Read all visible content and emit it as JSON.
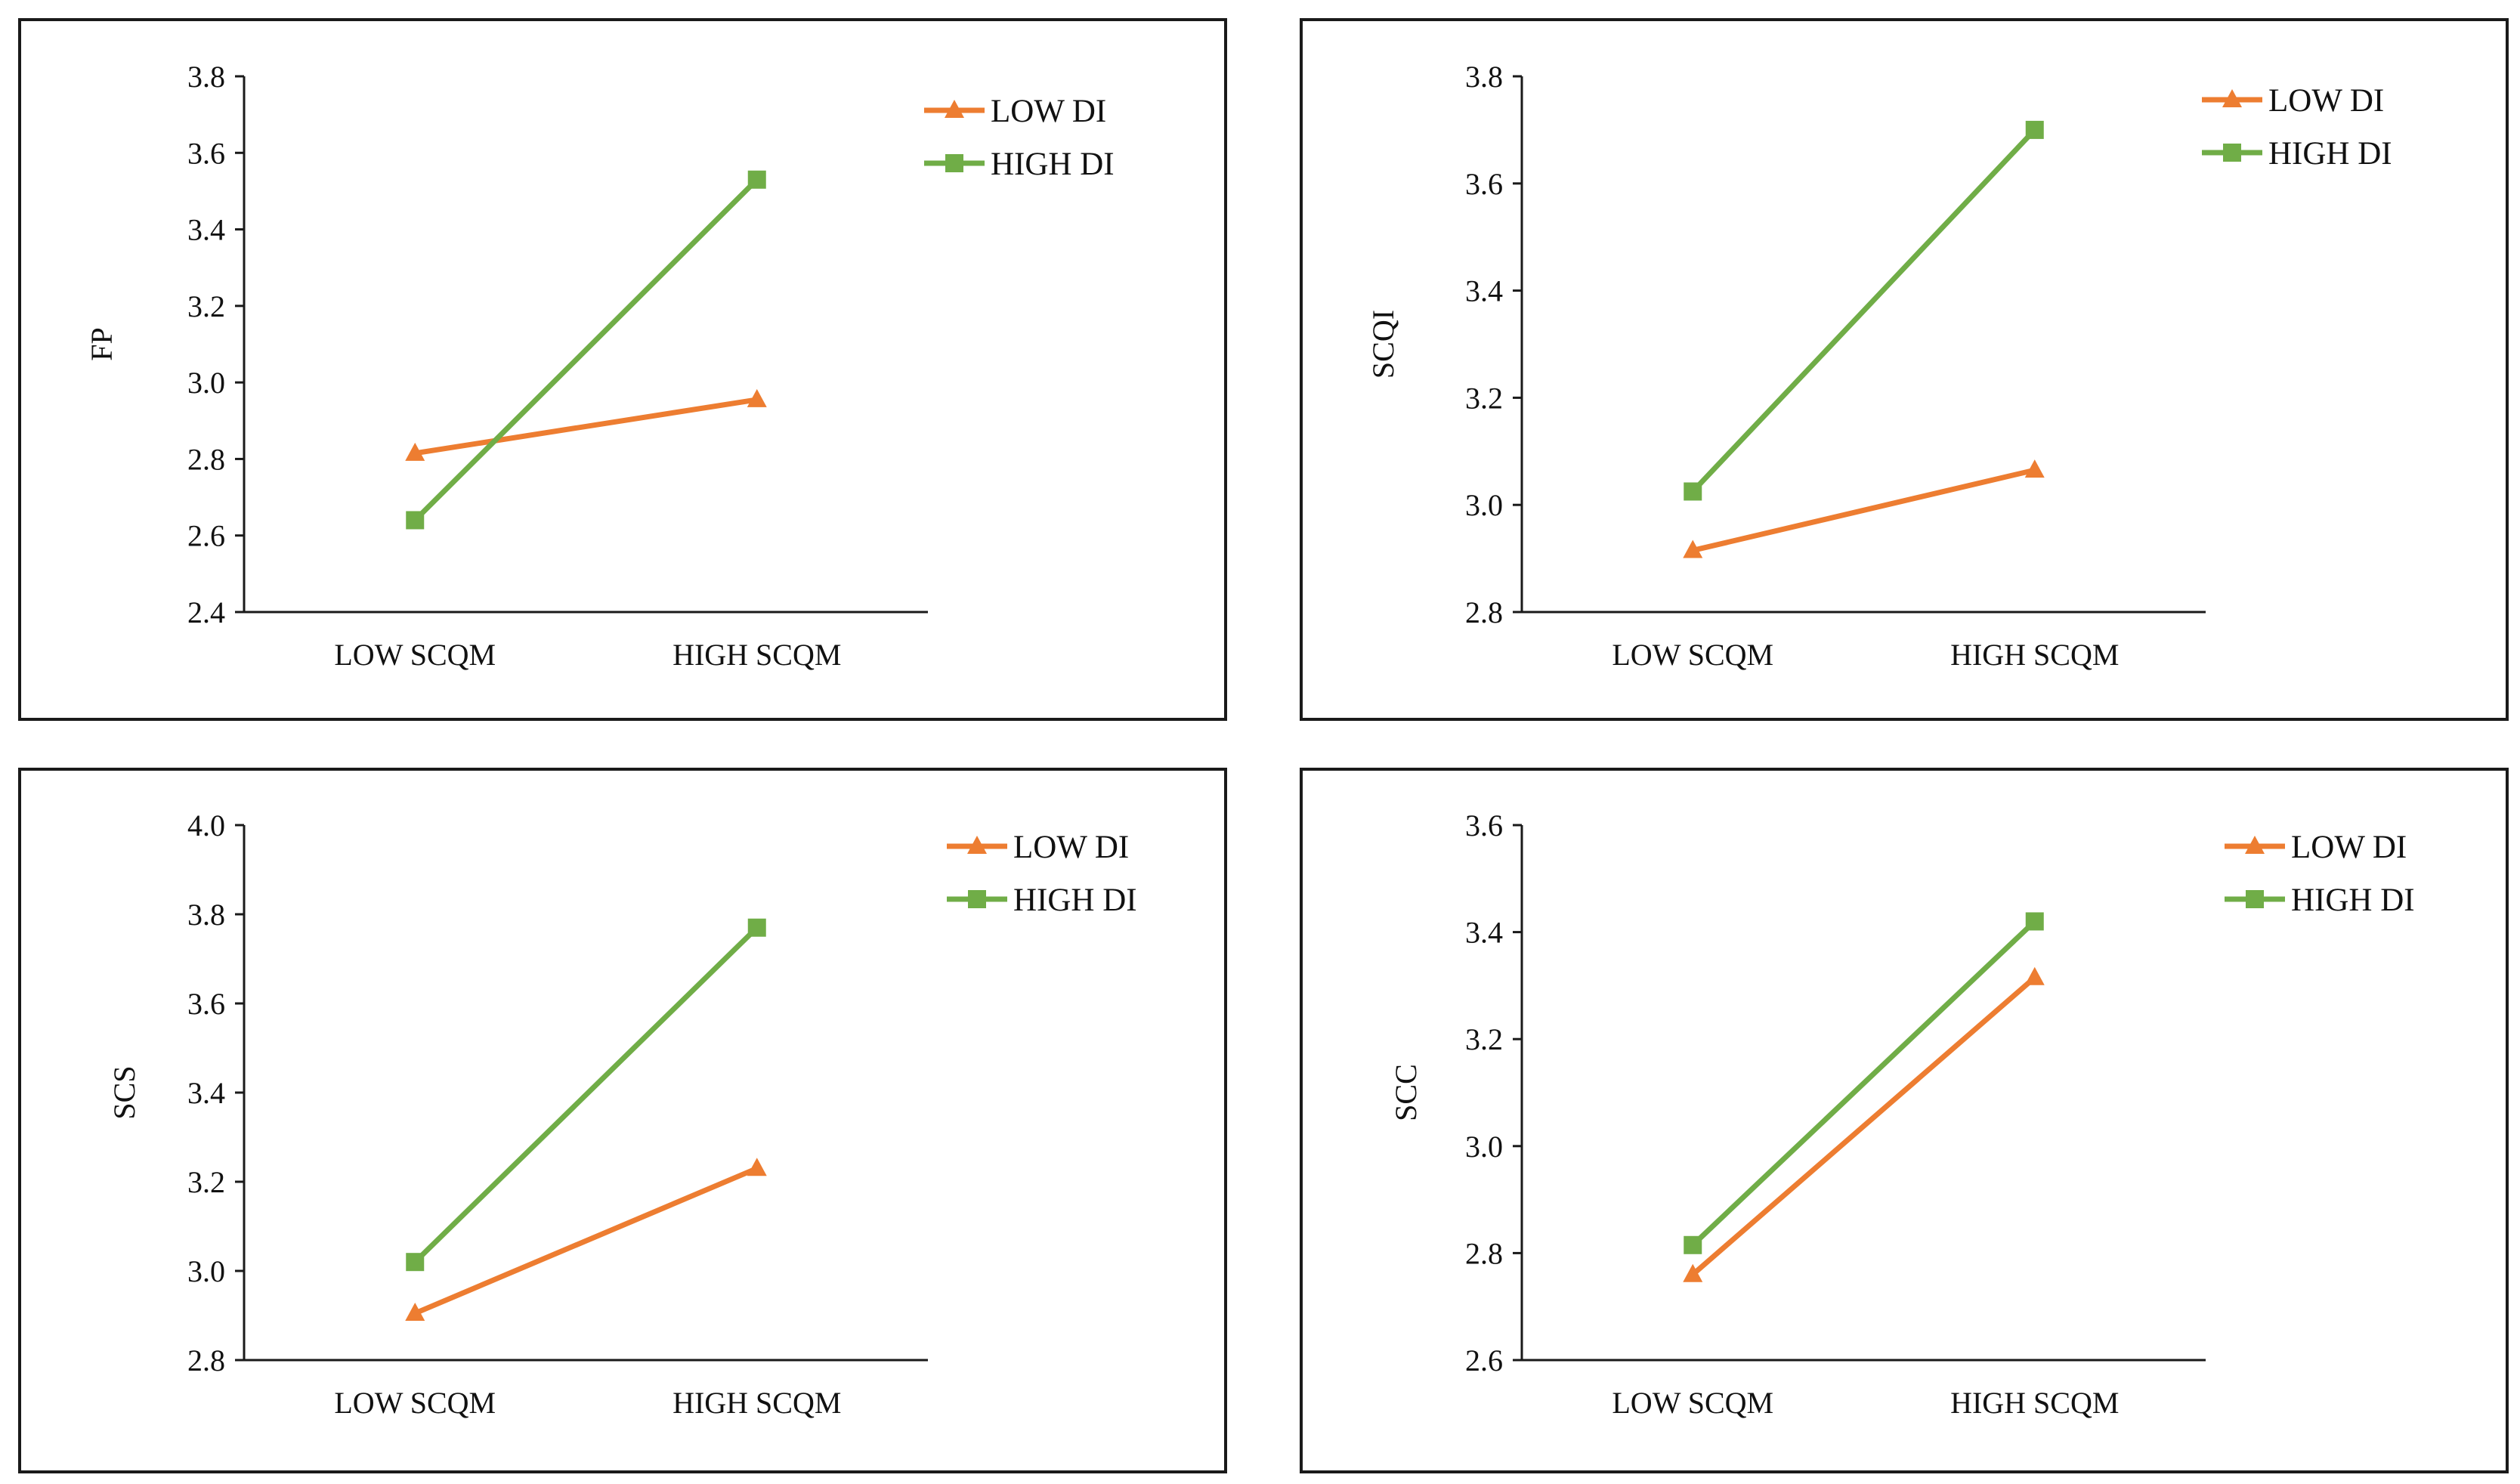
{
  "colors": {
    "low_di": "#ED7D31",
    "high_di": "#70AD47",
    "axis": "#1a1a1a"
  },
  "chart_data": [
    {
      "type": "line",
      "ylabel": "FP",
      "categories": [
        "LOW SCQM",
        "HIGH SCQM"
      ],
      "ylim": [
        2.4,
        3.8
      ],
      "yticks": [
        "2.4",
        "2.6",
        "2.8",
        "3.0",
        "3.2",
        "3.4",
        "3.6",
        "3.8"
      ],
      "series": [
        {
          "name": "LOW DI",
          "marker": "triangle",
          "values": [
            2.815,
            2.955
          ]
        },
        {
          "name": "HIGH DI",
          "marker": "square",
          "values": [
            2.64,
            3.53
          ]
        }
      ]
    },
    {
      "type": "line",
      "ylabel": "SCQI",
      "categories": [
        "LOW SCQM",
        "HIGH SCQM"
      ],
      "ylim": [
        2.8,
        3.8
      ],
      "yticks": [
        "2.8",
        "3.0",
        "3.2",
        "3.4",
        "3.6",
        "3.8"
      ],
      "series": [
        {
          "name": "LOW DI",
          "marker": "triangle",
          "values": [
            2.915,
            3.065
          ]
        },
        {
          "name": "HIGH DI",
          "marker": "square",
          "values": [
            3.025,
            3.7
          ]
        }
      ]
    },
    {
      "type": "line",
      "ylabel": "SCS",
      "categories": [
        "LOW SCQM",
        "HIGH SCQM"
      ],
      "ylim": [
        2.8,
        4.0
      ],
      "yticks": [
        "2.8",
        "3.0",
        "3.2",
        "3.4",
        "3.6",
        "3.8",
        "4.0"
      ],
      "series": [
        {
          "name": "LOW DI",
          "marker": "triangle",
          "values": [
            2.905,
            3.23
          ]
        },
        {
          "name": "HIGH DI",
          "marker": "square",
          "values": [
            3.02,
            3.77
          ]
        }
      ]
    },
    {
      "type": "line",
      "ylabel": "SCC",
      "categories": [
        "LOW SCQM",
        "HIGH SCQM"
      ],
      "ylim": [
        2.6,
        3.6
      ],
      "yticks": [
        "2.6",
        "2.8",
        "3.0",
        "3.2",
        "3.4",
        "3.6"
      ],
      "series": [
        {
          "name": "LOW DI",
          "marker": "triangle",
          "values": [
            2.76,
            3.315
          ]
        },
        {
          "name": "HIGH DI",
          "marker": "square",
          "values": [
            2.815,
            3.42
          ]
        }
      ]
    }
  ]
}
